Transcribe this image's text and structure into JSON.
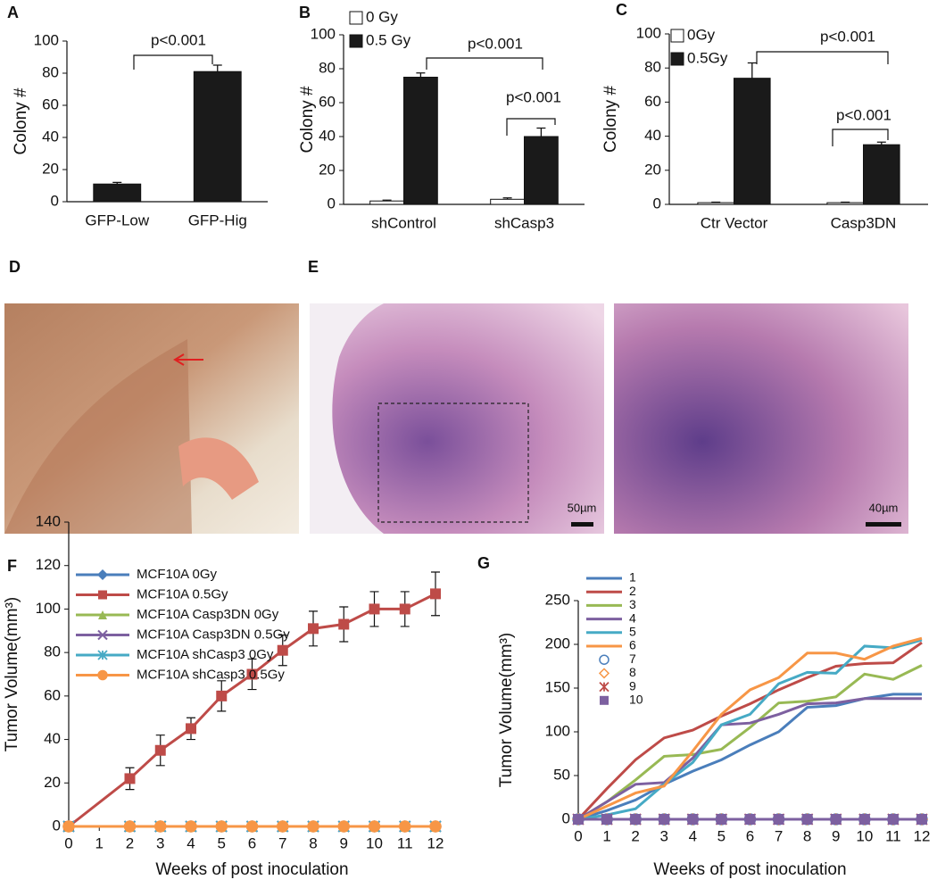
{
  "chart_data": [
    {
      "type": "bar",
      "label": "A",
      "y_label": "Colony #",
      "categories": [
        "GFP-Low",
        "GFP-Hig"
      ],
      "values": [
        11,
        81
      ],
      "errors": [
        1,
        4
      ],
      "color": "#1a1a1a",
      "ylim": [
        0,
        100
      ],
      "yticks": [
        0,
        20,
        40,
        60,
        80,
        100
      ],
      "annotations": [
        "p<0.001"
      ]
    },
    {
      "type": "bar",
      "label": "B",
      "y_label": "Colony #",
      "categories": [
        "shControl",
        "shCasp3"
      ],
      "series": [
        {
          "name": "0 Gy",
          "color": "#ffffff",
          "values": [
            2,
            3
          ],
          "errors": [
            0.5,
            0.8
          ]
        },
        {
          "name": "0.5 Gy",
          "color": "#1a1a1a",
          "values": [
            75,
            40
          ],
          "errors": [
            2.5,
            5
          ]
        }
      ],
      "ylim": [
        0,
        100
      ],
      "yticks": [
        0,
        20,
        40,
        60,
        80,
        100
      ],
      "annotations": [
        "p<0.001",
        "p<0.001"
      ]
    },
    {
      "type": "bar",
      "label": "C",
      "y_label": "Colony #",
      "categories": [
        "Ctr Vector",
        "Casp3DN"
      ],
      "series": [
        {
          "name": "0Gy",
          "color": "#ffffff",
          "values": [
            1,
            1
          ],
          "errors": [
            0.3,
            0.3
          ]
        },
        {
          "name": "0.5Gy",
          "color": "#1a1a1a",
          "values": [
            74,
            35
          ],
          "errors": [
            9,
            1.5
          ]
        }
      ],
      "ylim": [
        0,
        100
      ],
      "yticks": [
        0,
        20,
        40,
        60,
        80,
        100
      ],
      "annotations": [
        "p<0.001",
        "p<0.001"
      ]
    },
    {
      "type": "line",
      "label": "F",
      "y_label": "Tumor Volume(mm³)",
      "x_label": "Weeks of post inoculation",
      "x": [
        0,
        2,
        3,
        4,
        5,
        6,
        7,
        8,
        9,
        10,
        11,
        12
      ],
      "xlim": [
        0,
        12
      ],
      "xticks": [
        0,
        1,
        2,
        3,
        4,
        5,
        6,
        7,
        8,
        9,
        10,
        11,
        12
      ],
      "ylim": [
        0,
        140
      ],
      "yticks": [
        0,
        20,
        40,
        60,
        80,
        100,
        120,
        140
      ],
      "series": [
        {
          "name": "MCF10A 0Gy",
          "color": "#4a7ebb",
          "marker": "diamond",
          "values": [
            0,
            0,
            0,
            0,
            0,
            0,
            0,
            0,
            0,
            0,
            0,
            0
          ]
        },
        {
          "name": "MCF10A 0.5Gy",
          "color": "#be4b48",
          "marker": "square",
          "values": [
            0,
            22,
            35,
            45,
            60,
            70,
            81,
            91,
            93,
            100,
            100,
            107
          ],
          "errors": [
            0,
            5,
            7,
            5,
            7,
            7,
            7,
            8,
            8,
            8,
            8,
            10
          ]
        },
        {
          "name": "MCF10A Casp3DN 0Gy",
          "color": "#98b954",
          "marker": "triangle",
          "values": [
            0,
            0,
            0,
            0,
            0,
            0,
            0,
            0,
            0,
            0,
            0,
            0
          ]
        },
        {
          "name": "MCF10A Casp3DN 0.5Gy",
          "color": "#7d60a0",
          "marker": "x",
          "values": [
            0,
            0,
            0,
            0,
            0,
            0,
            0,
            0,
            0,
            0,
            0,
            0
          ]
        },
        {
          "name": "MCF10A shCasp3 0Gy",
          "color": "#46aac5",
          "marker": "asterisk",
          "values": [
            0,
            0,
            0,
            0,
            0,
            0,
            0,
            0,
            0,
            0,
            0,
            0
          ]
        },
        {
          "name": "MCF10A shCasp3 0.5Gy",
          "color": "#f79646",
          "marker": "circle",
          "values": [
            0,
            0,
            0,
            0,
            0,
            0,
            0,
            0,
            0,
            0,
            0,
            0
          ]
        }
      ]
    },
    {
      "type": "line",
      "label": "G",
      "y_label": "Tumor Volume(mm³)",
      "x_label": "Weeks of post inoculation",
      "x": [
        0,
        1,
        2,
        3,
        4,
        5,
        6,
        7,
        8,
        9,
        10,
        11,
        12
      ],
      "xlim": [
        0,
        12
      ],
      "xticks": [
        0,
        1,
        2,
        3,
        4,
        5,
        6,
        7,
        8,
        9,
        10,
        11,
        12
      ],
      "ylim": [
        0,
        250
      ],
      "yticks": [
        0,
        50,
        100,
        150,
        200,
        250
      ],
      "series": [
        {
          "name": "1",
          "color": "#4a7ebb",
          "values": [
            0,
            10,
            22,
            40,
            55,
            68,
            85,
            100,
            128,
            130,
            138,
            143,
            143
          ]
        },
        {
          "name": "2",
          "color": "#be4b48",
          "values": [
            0,
            35,
            68,
            93,
            102,
            118,
            132,
            148,
            162,
            175,
            178,
            179,
            202
          ]
        },
        {
          "name": "3",
          "color": "#98b954",
          "values": [
            0,
            20,
            45,
            72,
            74,
            80,
            105,
            133,
            135,
            140,
            166,
            160,
            176
          ]
        },
        {
          "name": "4",
          "color": "#7d60a0",
          "values": [
            0,
            20,
            40,
            42,
            70,
            108,
            110,
            120,
            132,
            133,
            138,
            138,
            138
          ]
        },
        {
          "name": "5",
          "color": "#46aac5",
          "values": [
            0,
            5,
            12,
            40,
            65,
            108,
            120,
            155,
            168,
            167,
            198,
            196,
            205
          ]
        },
        {
          "name": "6",
          "color": "#f79646",
          "values": [
            0,
            15,
            30,
            38,
            78,
            120,
            148,
            162,
            190,
            190,
            183,
            198,
            207
          ]
        },
        {
          "name": "7",
          "color": "#4a7ebb",
          "marker": "open-circle",
          "values": [
            0,
            0,
            0,
            0,
            0,
            0,
            0,
            0,
            0,
            0,
            0,
            0,
            0
          ]
        },
        {
          "name": "8",
          "color": "#f79646",
          "marker": "open-diamond",
          "values": [
            0,
            0,
            0,
            0,
            0,
            0,
            0,
            0,
            0,
            0,
            0,
            0,
            0
          ]
        },
        {
          "name": "9",
          "color": "#be4b48",
          "marker": "asterisk",
          "values": [
            0,
            0,
            0,
            0,
            0,
            0,
            0,
            0,
            0,
            0,
            0,
            0,
            0
          ]
        },
        {
          "name": "10",
          "color": "#7d60a0",
          "marker": "square",
          "values": [
            0,
            0,
            0,
            0,
            0,
            0,
            0,
            0,
            0,
            0,
            0,
            0,
            0
          ]
        }
      ]
    }
  ],
  "images": {
    "d_label": "D",
    "e_label": "E",
    "scale_left": "50µm",
    "scale_right": "40µm"
  }
}
